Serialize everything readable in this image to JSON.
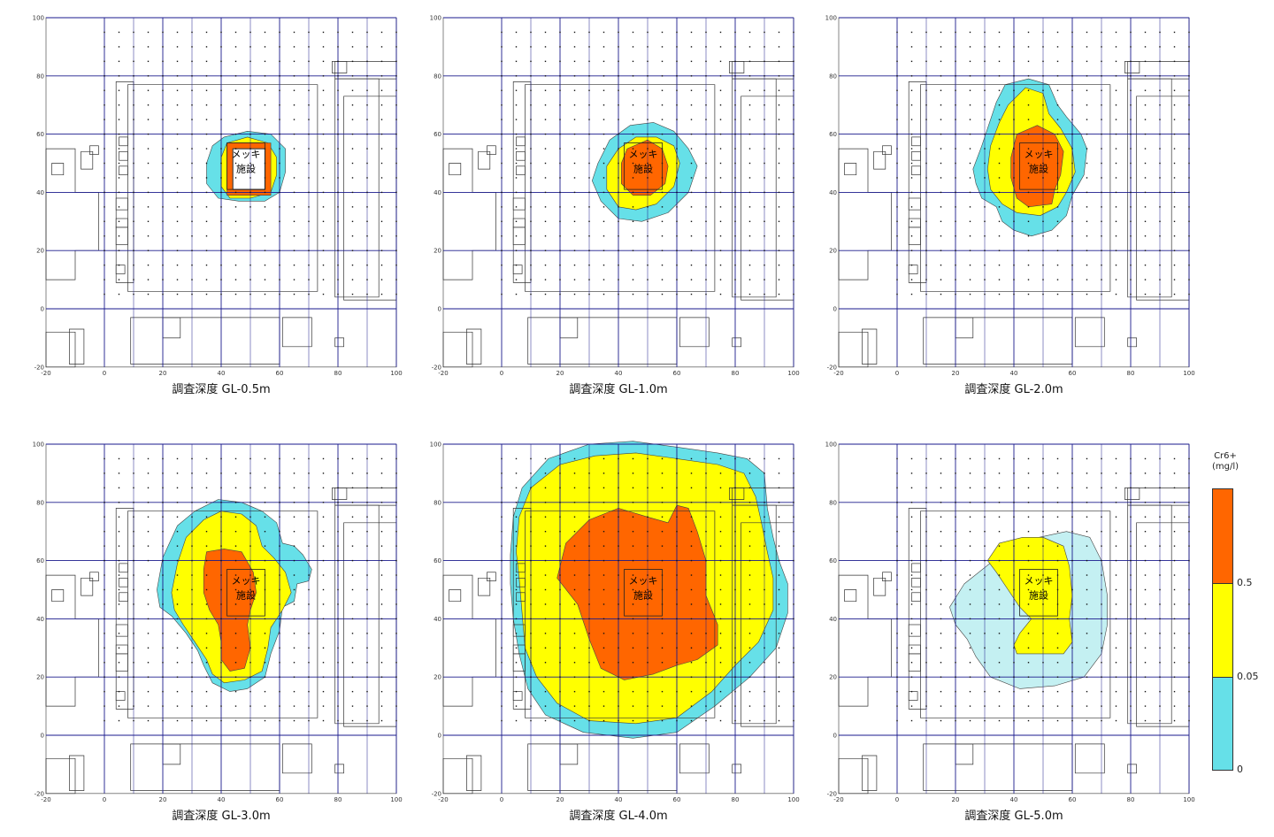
{
  "panels": [
    {
      "caption": "調査深度 GL-0.5m",
      "level": 1
    },
    {
      "caption": "調査深度 GL-1.0m",
      "level": 2
    },
    {
      "caption": "調査深度 GL-2.0m",
      "level": 3
    },
    {
      "caption": "調査深度 GL-3.0m",
      "level": 4
    },
    {
      "caption": "調査深度 GL-4.0m",
      "level": 5
    },
    {
      "caption": "調査深度 GL-5.0m",
      "level": 6
    }
  ],
  "facility_label_line1": "メッキ",
  "facility_label_line2": "施設",
  "axis_ticks_x": [
    "-20",
    "0",
    "20",
    "40",
    "60",
    "80",
    "100"
  ],
  "axis_ticks_y": [
    "100",
    "80",
    "60",
    "40",
    "20",
    "0",
    "-20"
  ],
  "legend": {
    "title_line1": "Cr6+",
    "title_line2": "(mg/l)",
    "ticks": [
      "0.5",
      "0.05",
      "0"
    ],
    "classes": [
      {
        "range": "> 0.5",
        "color": "#ff6600"
      },
      {
        "range": "0.05 - 0.5",
        "color": "#ffff00"
      },
      {
        "range": "0 - 0.05",
        "color": "#66e0e8"
      }
    ]
  },
  "colors": {
    "high": "#ff6600",
    "mid": "#ffff00",
    "low": "#66e0e8",
    "faint": "#c4f0f2",
    "grid": "#1a1a8c"
  }
}
